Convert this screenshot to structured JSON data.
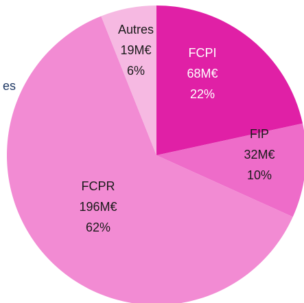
{
  "chart_data": {
    "type": "pie",
    "annotation": "es",
    "categories": [
      "FCPI",
      "FIP",
      "FCPR",
      "Autres"
    ],
    "values": [
      68,
      32,
      196,
      19
    ],
    "value_labels": [
      "68M€",
      "32M€",
      "196M€",
      "19M€"
    ],
    "percent_labels": [
      "22%",
      "10%",
      "62%",
      "6%"
    ],
    "colors": [
      "#e020a6",
      "#ee6cc9",
      "#f28bd3",
      "#f6b9e2"
    ],
    "label_colors": [
      "#ffffff",
      "#1a1a1a",
      "#1a1a1a",
      "#1a1a1a"
    ]
  }
}
